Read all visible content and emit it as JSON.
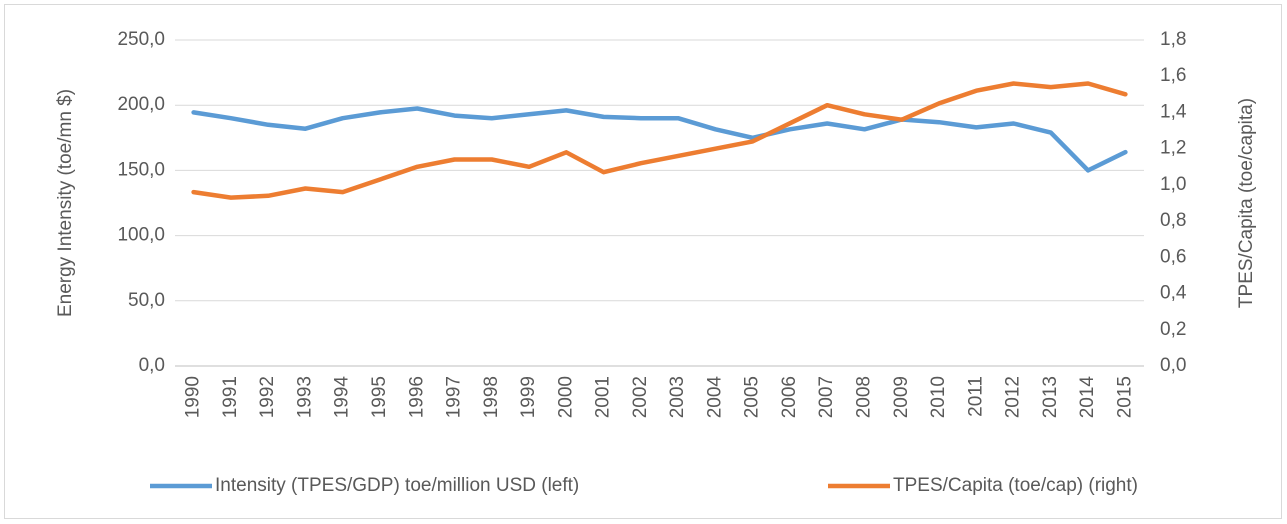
{
  "chart_data": {
    "type": "line",
    "categories": [
      "1990",
      "1991",
      "1992",
      "1993",
      "1994",
      "1995",
      "1996",
      "1997",
      "1998",
      "1999",
      "2000",
      "2001",
      "2002",
      "2003",
      "2004",
      "2005",
      "2006",
      "2007",
      "2008",
      "2009",
      "2010",
      "2011",
      "2012",
      "2013",
      "2014",
      "2015"
    ],
    "series": [
      {
        "name": "Intensity (TPES/GDP) toe/million USD (left)",
        "color": "#5b9bd5",
        "values": [
          194.5,
          190,
          185,
          182,
          190,
          194.5,
          197.5,
          192,
          190,
          193,
          196,
          191,
          190,
          190,
          181.5,
          175,
          181.5,
          186,
          181.5,
          189,
          187,
          183,
          186,
          179,
          150,
          164
        ]
      },
      {
        "name": "TPES/Capita (toe/cap) (right)",
        "color": "#ed7d31",
        "axis": "y2",
        "values": [
          0.96,
          0.93,
          0.94,
          0.98,
          0.96,
          1.03,
          1.1,
          1.14,
          1.14,
          1.1,
          1.18,
          1.07,
          1.12,
          1.16,
          1.2,
          1.24,
          1.34,
          1.44,
          1.39,
          1.36,
          1.45,
          1.52,
          1.56,
          1.54,
          1.56,
          1.5
        ]
      }
    ],
    "y_label": "Energy Intensity (toe/mn $)",
    "y2_label": "TPES/Capita (toe/capita)",
    "ylim": [
      0,
      250
    ],
    "yticks": [
      {
        "value": 0,
        "label": "0,0"
      },
      {
        "value": 50,
        "label": "50,0"
      },
      {
        "value": 100,
        "label": "100,0"
      },
      {
        "value": 150,
        "label": "150,0"
      },
      {
        "value": 200,
        "label": "200,0"
      },
      {
        "value": 250,
        "label": "250,0"
      }
    ],
    "y2lim": [
      0,
      1.8
    ],
    "y2ticks": [
      {
        "value": 0,
        "label": "0,0"
      },
      {
        "value": 0.2,
        "label": "0,2"
      },
      {
        "value": 0.4,
        "label": "0,4"
      },
      {
        "value": 0.6,
        "label": "0,6"
      },
      {
        "value": 0.8,
        "label": "0,8"
      },
      {
        "value": 1,
        "label": "1,0"
      },
      {
        "value": 1.2,
        "label": "1,2"
      },
      {
        "value": 1.4,
        "label": "1,4"
      },
      {
        "value": 1.6,
        "label": "1,6"
      },
      {
        "value": 1.8,
        "label": "1,8"
      }
    ],
    "grid": true,
    "legend": "bottom"
  }
}
